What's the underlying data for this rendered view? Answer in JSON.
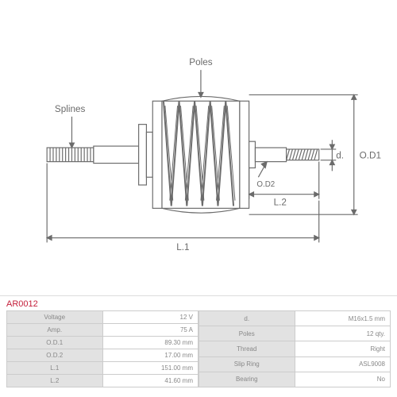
{
  "part_number": "AR0012",
  "diagram": {
    "labels": {
      "poles": "Poles",
      "splines": "Splines",
      "od1": "O.D1",
      "od2": "O.D2",
      "d": "d.",
      "l1": "L.1",
      "l2": "L.2"
    },
    "colors": {
      "line": "#6b6b6b",
      "text": "#6b6b6b",
      "bg": "#ffffff"
    }
  },
  "specs_left": [
    {
      "label": "Voltage",
      "value": "12 V"
    },
    {
      "label": "Amp.",
      "value": "75 A"
    },
    {
      "label": "O.D.1",
      "value": "89.30 mm"
    },
    {
      "label": "O.D.2",
      "value": "17.00 mm"
    },
    {
      "label": "L.1",
      "value": "151.00 mm"
    },
    {
      "label": "L.2",
      "value": "41.60 mm"
    }
  ],
  "specs_right": [
    {
      "label": "d.",
      "value": "M16x1.5 mm"
    },
    {
      "label": "Poles",
      "value": "12 qty."
    },
    {
      "label": "Thread",
      "value": "Right"
    },
    {
      "label": "Slip Ring",
      "value": "ASL9008"
    },
    {
      "label": "Bearing",
      "value": "No"
    }
  ]
}
